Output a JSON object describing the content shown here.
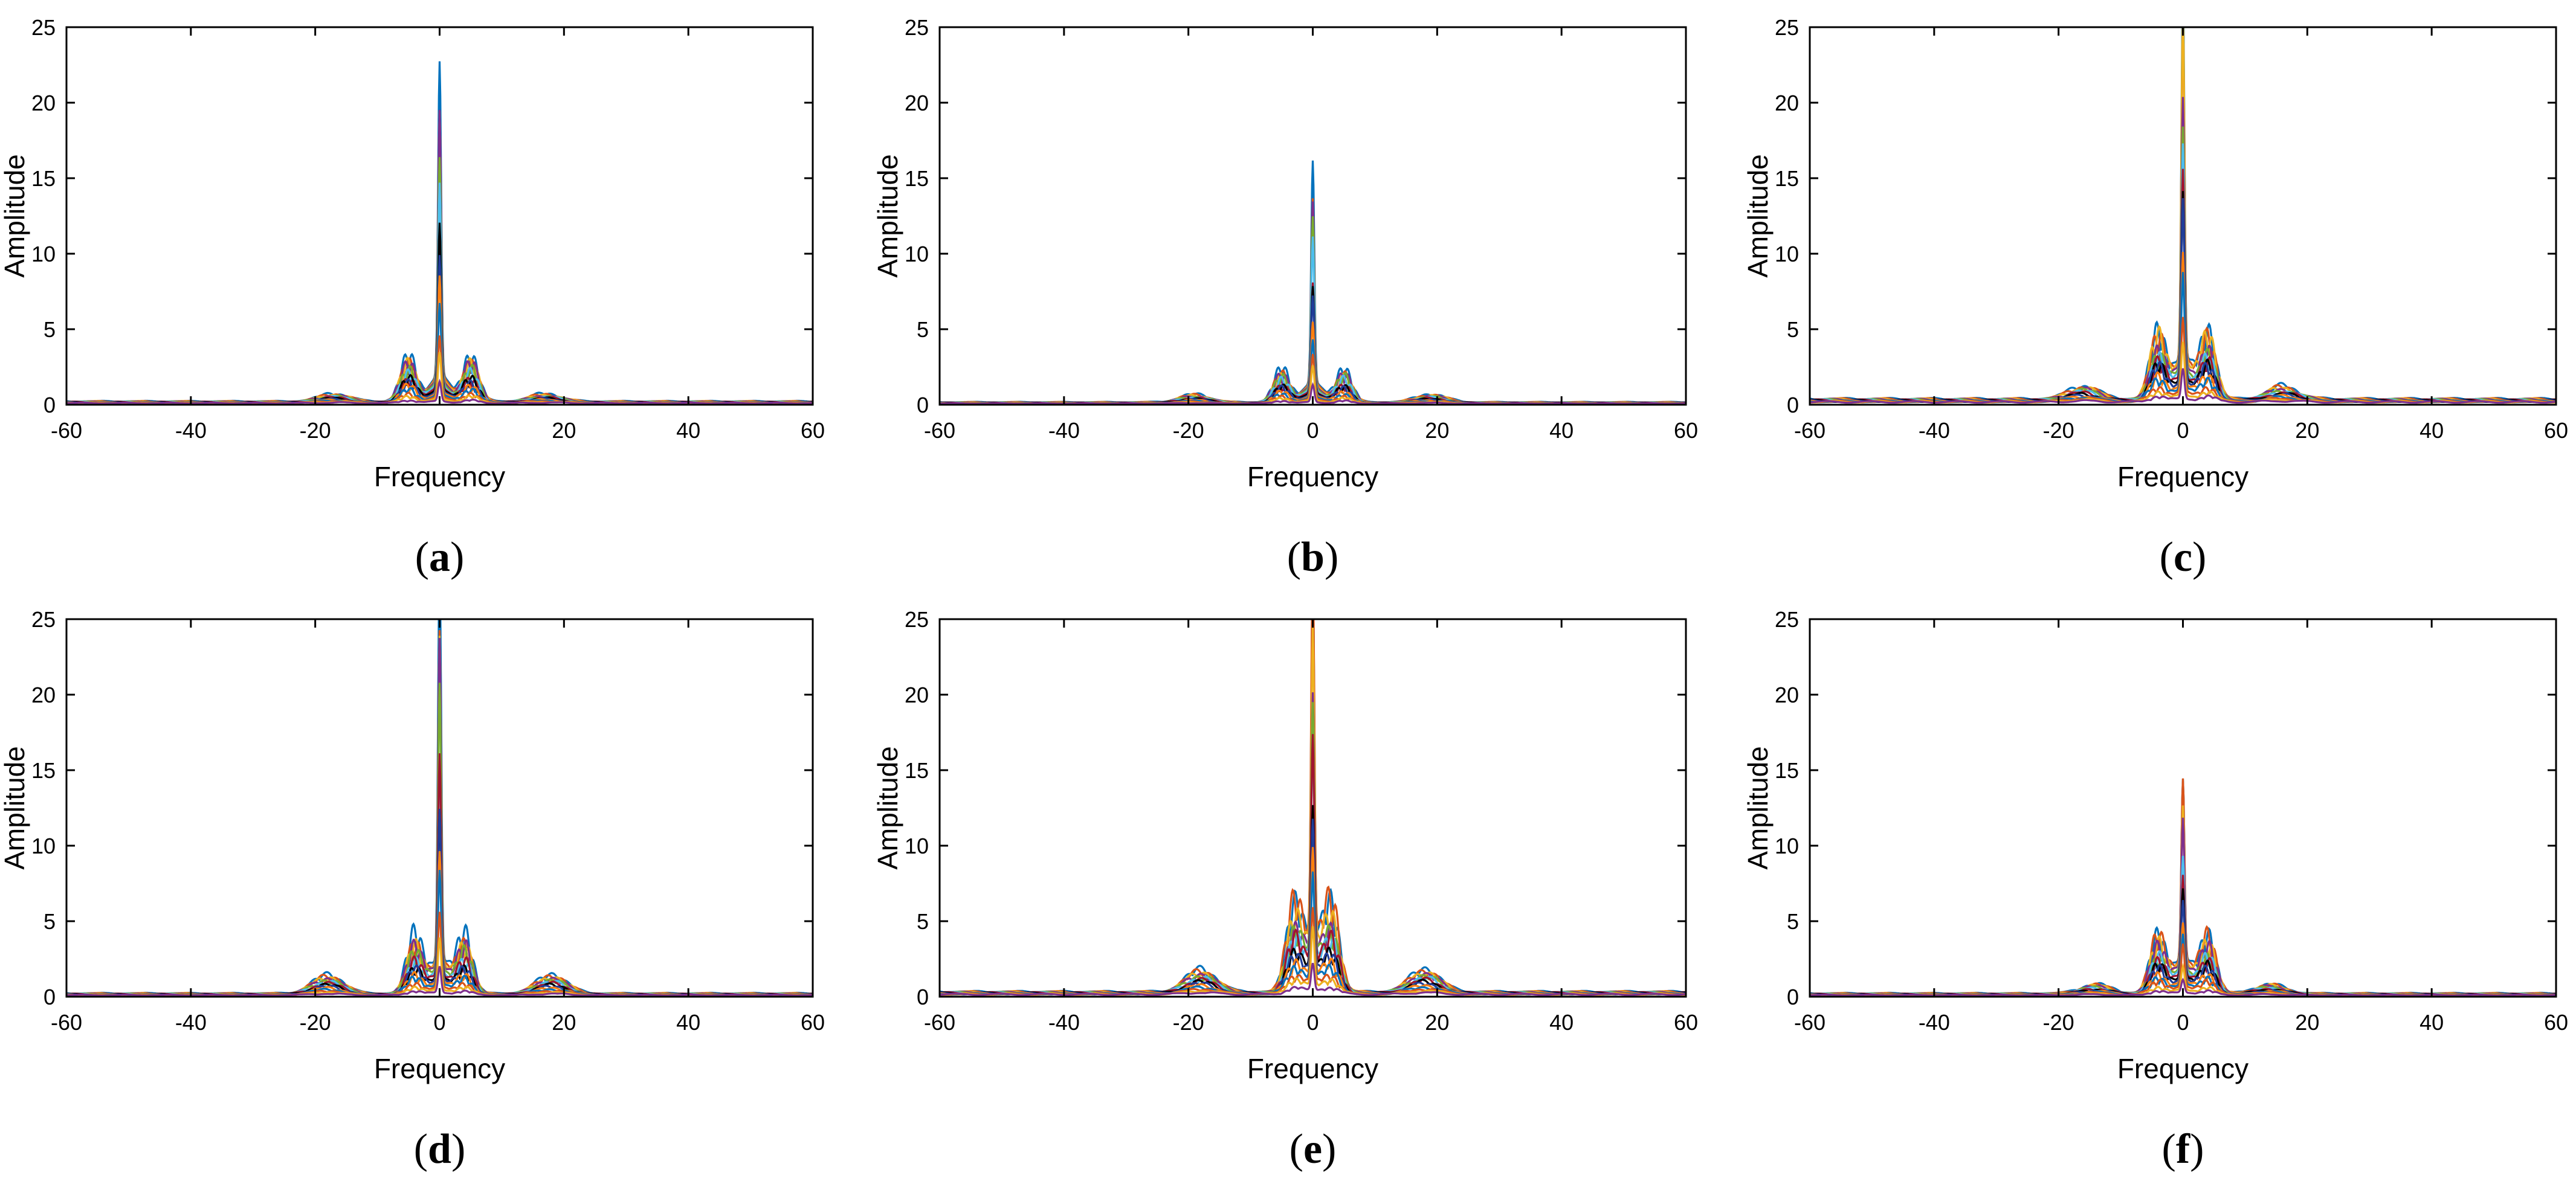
{
  "chart_data": [
    {
      "type": "line",
      "panel_label": "a",
      "xlabel": "Frequency",
      "ylabel": "Amplitude",
      "xlim": [
        -60,
        60
      ],
      "ylim": [
        0,
        25
      ],
      "xticks": [
        -60,
        -40,
        -20,
        0,
        20,
        40,
        60
      ],
      "yticks": [
        0,
        5,
        10,
        15,
        20,
        25
      ],
      "grid": false,
      "peak_amplitude": 19.8,
      "sidelobe_amplitude": 3.3,
      "sidelobe_offset": 5,
      "outer_bump_amplitude": 0.6,
      "outer_bump_offset": 17,
      "floor_amplitude": 0.2
    },
    {
      "type": "line",
      "panel_label": "b",
      "xlabel": "Frequency",
      "ylabel": "Amplitude",
      "xlim": [
        -60,
        60
      ],
      "ylim": [
        0,
        25
      ],
      "xticks": [
        -60,
        -40,
        -20,
        0,
        20,
        40,
        60
      ],
      "yticks": [
        0,
        5,
        10,
        15,
        20,
        25
      ],
      "grid": false,
      "peak_amplitude": 14.3,
      "sidelobe_amplitude": 2.5,
      "sidelobe_offset": 5,
      "outer_bump_amplitude": 0.6,
      "outer_bump_offset": 19,
      "floor_amplitude": 0.15
    },
    {
      "type": "line",
      "panel_label": "c",
      "xlabel": "Frequency",
      "ylabel": "Amplitude",
      "xlim": [
        -60,
        60
      ],
      "ylim": [
        0,
        25
      ],
      "xticks": [
        -60,
        -40,
        -20,
        0,
        20,
        40,
        60
      ],
      "yticks": [
        0,
        5,
        10,
        15,
        20,
        25
      ],
      "grid": false,
      "peak_amplitude": 25,
      "sidelobe_amplitude": 5.2,
      "sidelobe_offset": 4,
      "outer_bump_amplitude": 1.0,
      "outer_bump_offset": 16,
      "floor_amplitude": 0.35
    },
    {
      "type": "line",
      "panel_label": "d",
      "xlabel": "Frequency",
      "ylabel": "Amplitude",
      "xlim": [
        -60,
        60
      ],
      "ylim": [
        0,
        25
      ],
      "xticks": [
        -60,
        -40,
        -20,
        0,
        20,
        40,
        60
      ],
      "yticks": [
        0,
        5,
        10,
        15,
        20,
        25
      ],
      "grid": false,
      "peak_amplitude": 25,
      "sidelobe_amplitude": 4.2,
      "sidelobe_offset": 4,
      "outer_bump_amplitude": 1.4,
      "outer_bump_offset": 18,
      "floor_amplitude": 0.2
    },
    {
      "type": "line",
      "panel_label": "e",
      "xlabel": "Frequency",
      "ylabel": "Amplitude",
      "xlim": [
        -60,
        60
      ],
      "ylim": [
        0,
        25
      ],
      "xticks": [
        -60,
        -40,
        -20,
        0,
        20,
        40,
        60
      ],
      "yticks": [
        0,
        5,
        10,
        15,
        20,
        25
      ],
      "grid": false,
      "peak_amplitude": 25,
      "sidelobe_amplitude": 6.3,
      "sidelobe_offset": 3,
      "outer_bump_amplitude": 1.7,
      "outer_bump_offset": 18,
      "floor_amplitude": 0.3
    },
    {
      "type": "line",
      "panel_label": "f",
      "xlabel": "Frequency",
      "ylabel": "Amplitude",
      "xlim": [
        -60,
        60
      ],
      "ylim": [
        0,
        25
      ],
      "xticks": [
        -60,
        -40,
        -20,
        0,
        20,
        40,
        60
      ],
      "yticks": [
        0,
        5,
        10,
        15,
        20,
        25
      ],
      "grid": false,
      "peak_amplitude": 11.7,
      "sidelobe_amplitude": 4.3,
      "sidelobe_offset": 4,
      "outer_bump_amplitude": 0.7,
      "outer_bump_offset": 14,
      "floor_amplitude": 0.2
    }
  ],
  "colors": {
    "series_palette": [
      "#0072bd",
      "#d95319",
      "#edb120",
      "#7e2f8e",
      "#77ac30",
      "#4dbeee",
      "#a2142f",
      "#000000",
      "#1f3d99",
      "#ff7f0e"
    ],
    "axes": "#000000",
    "background": "#ffffff"
  }
}
